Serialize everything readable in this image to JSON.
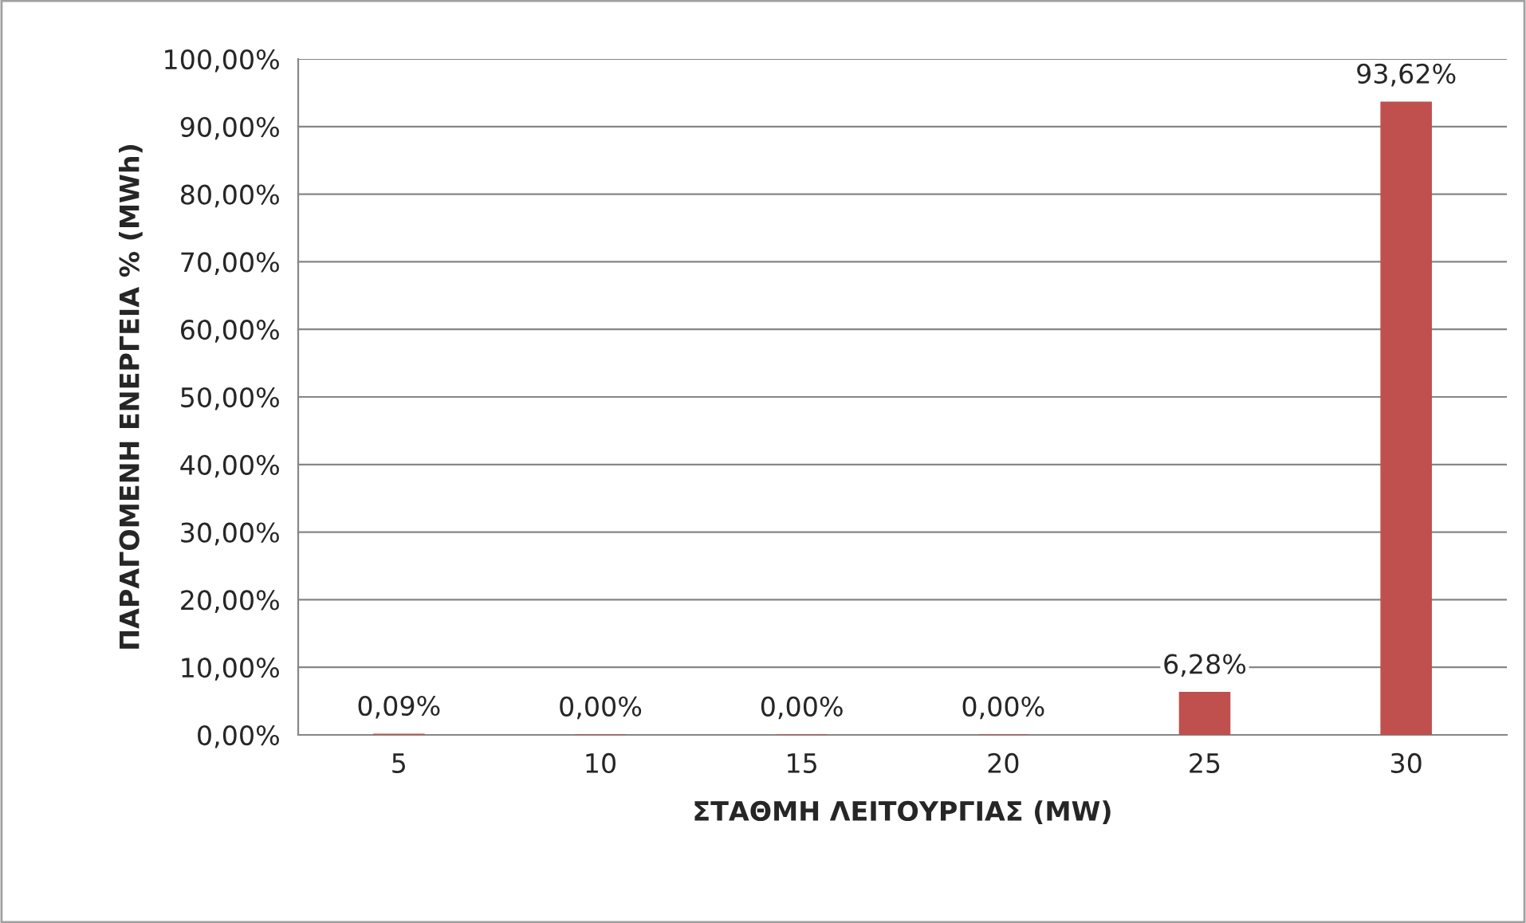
{
  "chart_data": {
    "type": "bar",
    "xlabel": "ΣΤΑΘΜΗ ΛΕΙΤΟΥΡΓΙΑΣ (MW)",
    "ylabel": "ΠΑΡΑΓΟΜΕΝΗ ΕΝΕΡΓΕΙΑ % (MWh)",
    "categories": [
      "5",
      "10",
      "15",
      "20",
      "25",
      "30"
    ],
    "values": [
      0.09,
      0.0,
      0.0,
      0.0,
      6.28,
      93.62
    ],
    "value_labels": [
      "0,09%",
      "0,00%",
      "0,00%",
      "0,00%",
      "6,28%",
      "93,62%"
    ],
    "color": "#c0504d",
    "ylim": [
      0,
      100
    ],
    "yticks": [
      {
        "value": 0,
        "label": "0,00%"
      },
      {
        "value": 10,
        "label": "10,00%"
      },
      {
        "value": 20,
        "label": "20,00%"
      },
      {
        "value": 30,
        "label": "30,00%"
      },
      {
        "value": 40,
        "label": "40,00%"
      },
      {
        "value": 50,
        "label": "50,00%"
      },
      {
        "value": 60,
        "label": "60,00%"
      },
      {
        "value": 70,
        "label": "70,00%"
      },
      {
        "value": 80,
        "label": "80,00%"
      },
      {
        "value": 90,
        "label": "90,00%"
      },
      {
        "value": 100,
        "label": "100,00%"
      }
    ],
    "grid": "y"
  }
}
